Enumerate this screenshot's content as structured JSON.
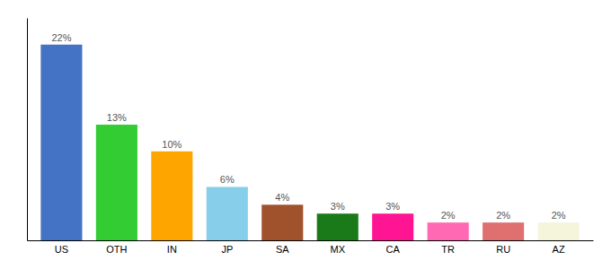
{
  "chart_data": {
    "type": "bar",
    "categories": [
      "US",
      "OTH",
      "IN",
      "JP",
      "SA",
      "MX",
      "CA",
      "TR",
      "RU",
      "AZ"
    ],
    "values": [
      22,
      13,
      10,
      6,
      4,
      3,
      3,
      2,
      2,
      2
    ],
    "value_labels": [
      "22%",
      "13%",
      "10%",
      "6%",
      "4%",
      "3%",
      "3%",
      "2%",
      "2%",
      "2%"
    ],
    "colors": [
      "#4472C4",
      "#33CC33",
      "#FFA500",
      "#87CEEB",
      "#A0522D",
      "#1A7A1A",
      "#FF1493",
      "#FF69B4",
      "#E07070",
      "#F5F5DC"
    ],
    "ylim": [
      0,
      25
    ],
    "yticks": [],
    "data_labels": true,
    "tick_labels": "x"
  }
}
